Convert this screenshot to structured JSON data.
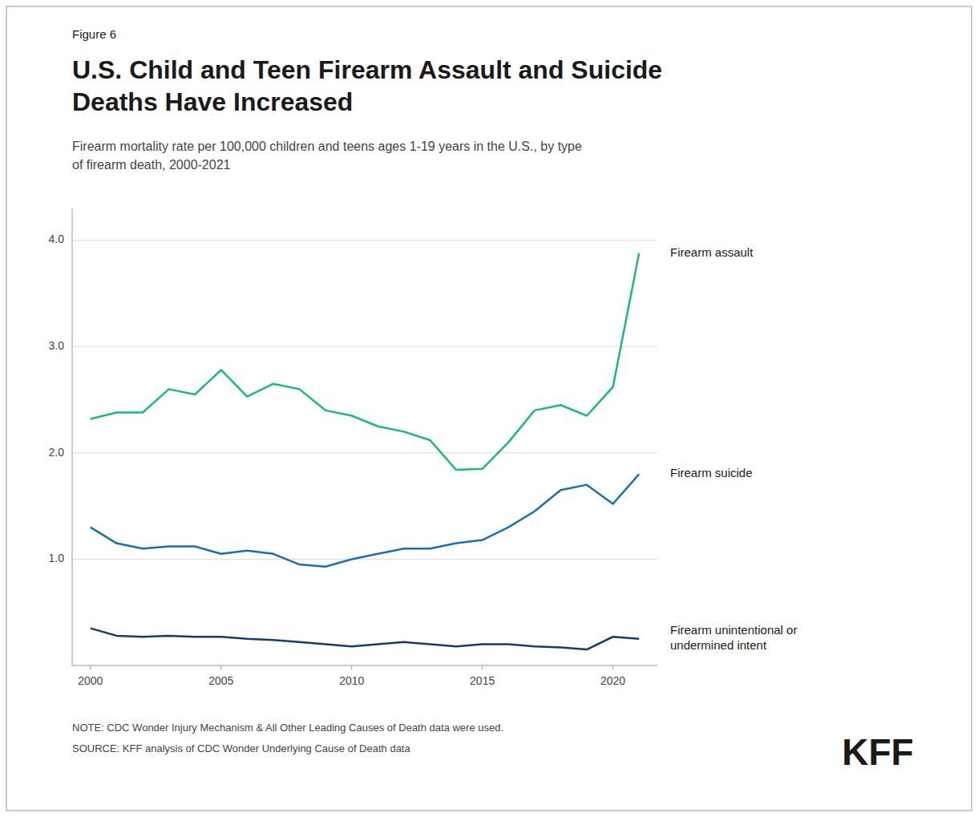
{
  "chart_data": {
    "type": "line",
    "figure_label": "Figure 6",
    "title": "U.S. Child and Teen Firearm Assault and Suicide\nDeaths Have Increased",
    "subtitle": "Firearm mortality rate per 100,000 children and teens ages 1-19 years in the U.S., by type\nof firearm death, 2000-2021",
    "notes": [
      "NOTE: CDC Wonder Injury Mechanism & All Other Leading Causes of Death data were used.",
      "SOURCE: KFF analysis of CDC Wonder Underlying Cause of Death data"
    ],
    "brand": "KFF",
    "x": [
      2000,
      2001,
      2002,
      2003,
      2004,
      2005,
      2006,
      2007,
      2008,
      2009,
      2010,
      2011,
      2012,
      2013,
      2014,
      2015,
      2016,
      2017,
      2018,
      2019,
      2020,
      2021
    ],
    "series": [
      {
        "name": "Firearm assault",
        "color": "#1db87e",
        "values": [
          2.32,
          2.38,
          2.38,
          2.6,
          2.55,
          2.78,
          2.53,
          2.65,
          2.6,
          2.4,
          2.35,
          2.25,
          2.2,
          2.12,
          1.84,
          1.85,
          2.1,
          2.4,
          2.45,
          2.35,
          2.62,
          3.88
        ]
      },
      {
        "name": "Firearm suicide",
        "color": "#1a6faf",
        "values": [
          1.3,
          1.15,
          1.1,
          1.12,
          1.12,
          1.05,
          1.08,
          1.05,
          0.95,
          0.93,
          1.0,
          1.05,
          1.1,
          1.1,
          1.15,
          1.18,
          1.3,
          1.45,
          1.65,
          1.7,
          1.52,
          1.8
        ]
      },
      {
        "name": "Firearm unintentional or\nundermined intent",
        "color": "#1a3a6b",
        "values": [
          0.35,
          0.28,
          0.27,
          0.28,
          0.27,
          0.27,
          0.25,
          0.24,
          0.22,
          0.2,
          0.18,
          0.2,
          0.22,
          0.2,
          0.18,
          0.2,
          0.2,
          0.18,
          0.17,
          0.15,
          0.27,
          0.25
        ]
      }
    ],
    "xlim": [
      1999.3,
      2021.7
    ],
    "xticks": [
      2000,
      2005,
      2010,
      2015,
      2020
    ],
    "ylim": [
      0.0,
      4.3
    ],
    "yticks": [
      {
        "value": 1.0,
        "label": "1.0"
      },
      {
        "value": 2.0,
        "label": "2.0"
      },
      {
        "value": 3.0,
        "label": "3.0"
      },
      {
        "value": 4.0,
        "label": "4.0"
      }
    ],
    "grid": true
  }
}
